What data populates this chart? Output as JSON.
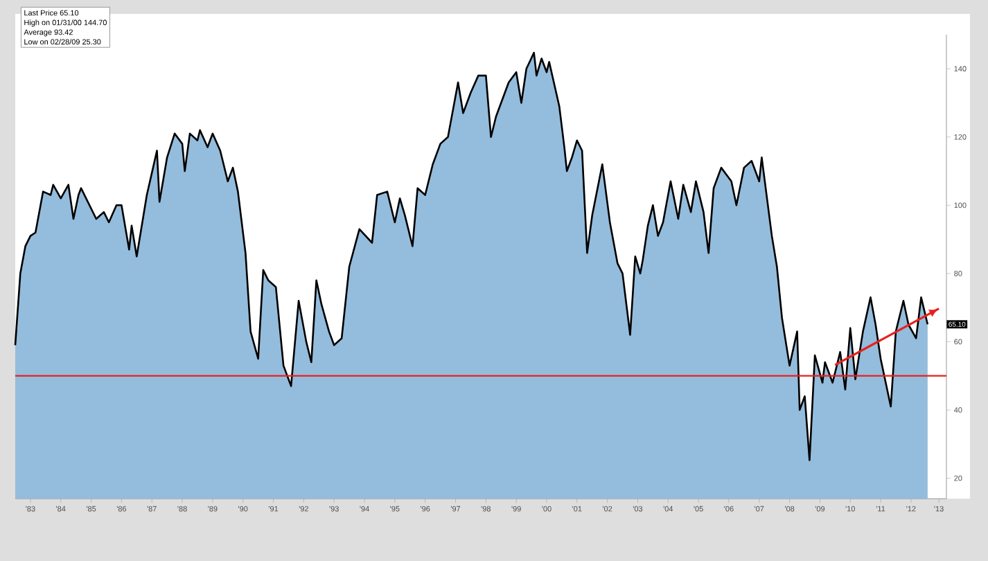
{
  "chart_data": {
    "type": "area",
    "xlim": [
      "1983-01",
      "2013-09"
    ],
    "ylim": [
      14,
      150
    ],
    "xticks": [
      {
        "value": "1983-07",
        "label": "'83"
      },
      {
        "value": "1984-07",
        "label": "'84"
      },
      {
        "value": "1985-07",
        "label": "'85"
      },
      {
        "value": "1986-07",
        "label": "'86"
      },
      {
        "value": "1987-07",
        "label": "'87"
      },
      {
        "value": "1988-07",
        "label": "'88"
      },
      {
        "value": "1989-07",
        "label": "'89"
      },
      {
        "value": "1990-07",
        "label": "'90"
      },
      {
        "value": "1991-07",
        "label": "'91"
      },
      {
        "value": "1992-07",
        "label": "'92"
      },
      {
        "value": "1993-07",
        "label": "'93"
      },
      {
        "value": "1994-07",
        "label": "'94"
      },
      {
        "value": "1995-07",
        "label": "'95"
      },
      {
        "value": "1996-07",
        "label": "'96"
      },
      {
        "value": "1997-07",
        "label": "'97"
      },
      {
        "value": "1998-07",
        "label": "'98"
      },
      {
        "value": "1999-07",
        "label": "'99"
      },
      {
        "value": "2000-07",
        "label": "'00"
      },
      {
        "value": "2001-07",
        "label": "'01"
      },
      {
        "value": "2002-07",
        "label": "'02"
      },
      {
        "value": "2003-07",
        "label": "'03"
      },
      {
        "value": "2004-07",
        "label": "'04"
      },
      {
        "value": "2005-07",
        "label": "'05"
      },
      {
        "value": "2006-07",
        "label": "'06"
      },
      {
        "value": "2007-07",
        "label": "'07"
      },
      {
        "value": "2008-07",
        "label": "'08"
      },
      {
        "value": "2009-07",
        "label": "'09"
      },
      {
        "value": "2010-07",
        "label": "'10"
      },
      {
        "value": "2011-07",
        "label": "'11"
      },
      {
        "value": "2012-07",
        "label": "'12"
      },
      {
        "value": "2013-06",
        "label": "'13"
      }
    ],
    "yticks": [
      20,
      40,
      60,
      80,
      100,
      120,
      140
    ],
    "series": [
      {
        "color": "#000000",
        "x": [
          "1983-01",
          "1983-03",
          "1983-05",
          "1983-07",
          "1983-09",
          "1983-12",
          "1984-03",
          "1984-04",
          "1984-07",
          "1984-10",
          "1984-12",
          "1985-02",
          "1985-03",
          "1985-09",
          "1985-12",
          "1986-02",
          "1986-05",
          "1986-07",
          "1986-10",
          "1986-11",
          "1987-01",
          "1987-05",
          "1987-09",
          "1987-10",
          "1988-01",
          "1988-04",
          "1988-07",
          "1988-08",
          "1988-10",
          "1989-01",
          "1989-02",
          "1989-05",
          "1989-07",
          "1989-10",
          "1990-01",
          "1990-03",
          "1990-05",
          "1990-08",
          "1990-10",
          "1991-01",
          "1991-03",
          "1991-05",
          "1991-08",
          "1991-11",
          "1992-02",
          "1992-05",
          "1992-08",
          "1992-10",
          "1992-12",
          "1993-02",
          "1993-05",
          "1993-07",
          "1993-10",
          "1994-01",
          "1994-05",
          "1994-10",
          "1994-12",
          "1995-04",
          "1995-07",
          "1995-09",
          "1995-11",
          "1996-02",
          "1996-04",
          "1996-07",
          "1996-10",
          "1997-01",
          "1997-04",
          "1997-06",
          "1997-08",
          "1997-10",
          "1998-01",
          "1998-04",
          "1998-07",
          "1998-09",
          "1998-11",
          "1999-04",
          "1999-07",
          "1999-09",
          "1999-11",
          "2000-01-31",
          "2000-03",
          "2000-05",
          "2000-07",
          "2000-08",
          "2000-12",
          "2001-02",
          "2001-03",
          "2001-05",
          "2001-07",
          "2001-09",
          "2001-11",
          "2002-01",
          "2002-05",
          "2002-08",
          "2002-11",
          "2003-01",
          "2003-04",
          "2003-06",
          "2003-08",
          "2003-09",
          "2003-11",
          "2004-01",
          "2004-03",
          "2004-05",
          "2004-08",
          "2004-11",
          "2005-01",
          "2005-04",
          "2005-06",
          "2005-09",
          "2005-11",
          "2006-01",
          "2006-04",
          "2006-08",
          "2006-10",
          "2007-01",
          "2007-04",
          "2007-07",
          "2007-08",
          "2007-12",
          "2008-02",
          "2008-04",
          "2008-07",
          "2008-10",
          "2008-11",
          "2009-01",
          "2009-02-28",
          "2009-05",
          "2009-08",
          "2009-09",
          "2009-12",
          "2010-03",
          "2010-05",
          "2010-07",
          "2010-09",
          "2010-12",
          "2011-03",
          "2011-05",
          "2011-07",
          "2011-09",
          "2011-11",
          "2012-01",
          "2012-04",
          "2012-06",
          "2012-09",
          "2012-11",
          "2013-01-18"
        ],
        "values": [
          59,
          80,
          88,
          91,
          92,
          104,
          103,
          106,
          102,
          106,
          96,
          103,
          105,
          96,
          98,
          95,
          100,
          100,
          87,
          94,
          85,
          103,
          116,
          101,
          114,
          121,
          118,
          110,
          121,
          119,
          122,
          117,
          121,
          116,
          107,
          111,
          104,
          86,
          63,
          55,
          81,
          78,
          76,
          53,
          47,
          72,
          60,
          54,
          78,
          71,
          63,
          59,
          61,
          82,
          93,
          89,
          103,
          104,
          95,
          102,
          97,
          88,
          105,
          103,
          112,
          118,
          120,
          128,
          136,
          127,
          133,
          138,
          138,
          120,
          126,
          136,
          139,
          130,
          140,
          144.7,
          138,
          143,
          139,
          142,
          129,
          117,
          110,
          114,
          119,
          116,
          86,
          97,
          112,
          95,
          83,
          80,
          62,
          85,
          80,
          84,
          94,
          100,
          91,
          95,
          107,
          96,
          106,
          98,
          107,
          98,
          86,
          105,
          111,
          107,
          100,
          111,
          113,
          107,
          114,
          91,
          82,
          67,
          53,
          63,
          40,
          44,
          25.3,
          56,
          48,
          54,
          48,
          57,
          46,
          64,
          49,
          63,
          73,
          65,
          55,
          48,
          41,
          63,
          72,
          65,
          61,
          73,
          65.1
        ]
      },
      {
        "type": "line",
        "color": "#e8201c",
        "x": [
          "2010-01",
          "2013-06"
        ],
        "values": [
          53.2,
          69.7
        ]
      }
    ],
    "ref_lines": [
      {
        "axis": "y",
        "value": 50,
        "color": "#e8201c"
      }
    ],
    "annotations": [
      "Last Price 65.10",
      "High on 01/31/00 144.70",
      "Average 93.42",
      "Low on 02/28/09 25.30",
      "65.10"
    ]
  }
}
